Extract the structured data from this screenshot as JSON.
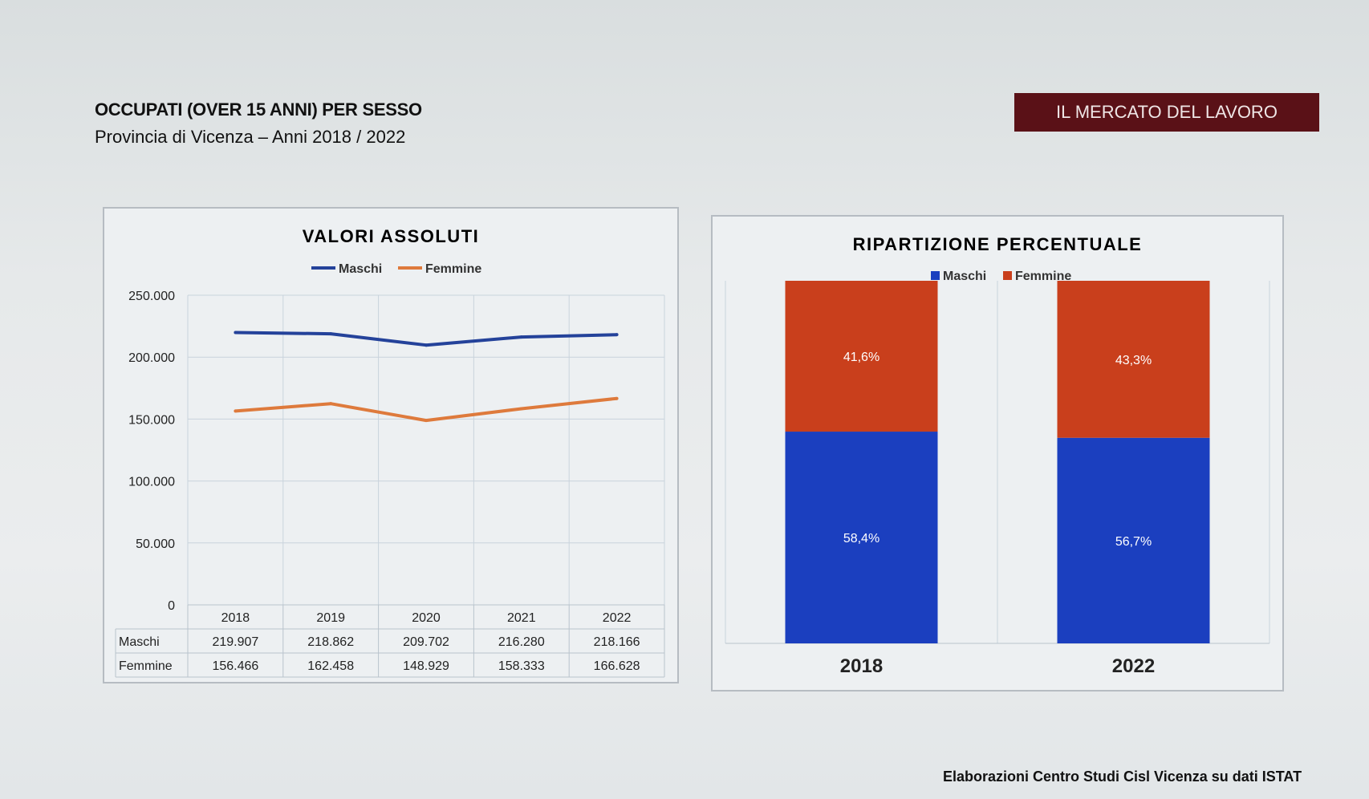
{
  "header": {
    "title": "OCCUPATI (OVER 15 ANNI) PER SESSO",
    "subtitle": "Provincia di Vicenza – Anni 2018 / 2022",
    "banner": "IL MERCATO DEL LAVORO"
  },
  "footer": "Elaborazioni Centro Studi Cisl Vicenza su dati ISTAT",
  "colors": {
    "maschi_line": "#24429a",
    "femmine_line": "#de7a3c",
    "maschi_bar": "#1b3fbf",
    "femmine_bar": "#c93f1c",
    "banner": "#5a1117"
  },
  "chart_data": [
    {
      "type": "line",
      "title": "VALORI ASSOLUTI",
      "categories": [
        "2018",
        "2019",
        "2020",
        "2021",
        "2022"
      ],
      "series": [
        {
          "name": "Maschi",
          "values": [
            219907,
            218862,
            209702,
            216280,
            218166
          ],
          "labels": [
            "219.907",
            "218.862",
            "209.702",
            "216.280",
            "218.166"
          ]
        },
        {
          "name": "Femmine",
          "values": [
            156466,
            162458,
            148929,
            158333,
            166628
          ],
          "labels": [
            "156.466",
            "162.458",
            "148.929",
            "158.333",
            "166.628"
          ]
        }
      ],
      "yticks": [
        "250.000",
        "200.000",
        "150.000",
        "100.000",
        "50.000",
        "0"
      ],
      "ylim": [
        0,
        250000
      ],
      "grid": true,
      "legend": "top",
      "data_table": true
    },
    {
      "type": "bar",
      "stacked": true,
      "title": "RIPARTIZIONE PERCENTUALE",
      "categories": [
        "2018",
        "2022"
      ],
      "series": [
        {
          "name": "Maschi",
          "values": [
            58.4,
            56.7
          ],
          "labels": [
            "58,4%",
            "56,7%"
          ]
        },
        {
          "name": "Femmine",
          "values": [
            41.6,
            43.3
          ],
          "labels": [
            "41,6%",
            "43,3%"
          ]
        }
      ],
      "ylim": [
        0,
        100
      ],
      "legend": "top"
    }
  ]
}
